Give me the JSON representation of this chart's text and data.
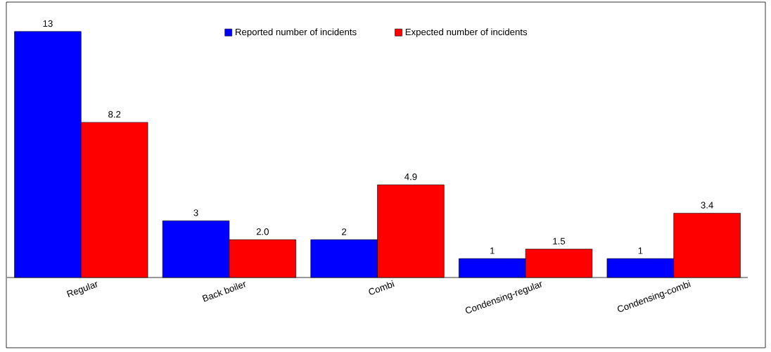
{
  "chart_data": {
    "type": "bar",
    "categories": [
      "Regular",
      "Back boiler",
      "Combi",
      "Condensing-regular",
      "Condensing-combi"
    ],
    "series": [
      {
        "name": "Reported number of incidents",
        "color": "#0000ff",
        "values": [
          13,
          3,
          2,
          1,
          1
        ],
        "value_labels": [
          "13",
          "3",
          "2",
          "1",
          "1"
        ]
      },
      {
        "name": "Expected number of incidents",
        "color": "#ff0000",
        "values": [
          8.2,
          2.0,
          4.9,
          1.5,
          3.4
        ],
        "value_labels": [
          "8.2",
          "2.0",
          "4.9",
          "1.5",
          "3.4"
        ]
      }
    ],
    "legend": "top"
  }
}
